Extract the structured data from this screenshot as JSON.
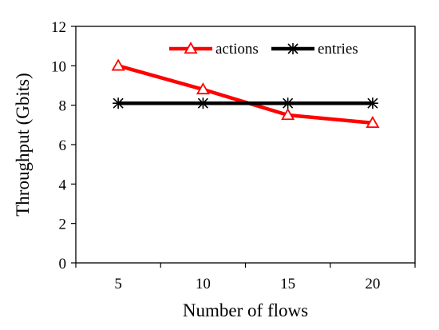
{
  "chart_data": {
    "type": "line",
    "title": "",
    "xlabel": "Number of flows",
    "ylabel": "Throughput (Gbits)",
    "categories": [
      "5",
      "10",
      "15",
      "20"
    ],
    "ylim": [
      0,
      12
    ],
    "yticks": [
      "0",
      "2",
      "4",
      "6",
      "8",
      "10",
      "12"
    ],
    "grid": false,
    "legend_position": "top-right",
    "series": [
      {
        "name": "actions",
        "values": [
          10.0,
          8.8,
          7.5,
          7.1
        ],
        "color": "#ff0000",
        "marker": "open-triangle"
      },
      {
        "name": "entries",
        "values": [
          8.1,
          8.1,
          8.1,
          8.1
        ],
        "color": "#000000",
        "marker": "asterisk"
      }
    ]
  }
}
